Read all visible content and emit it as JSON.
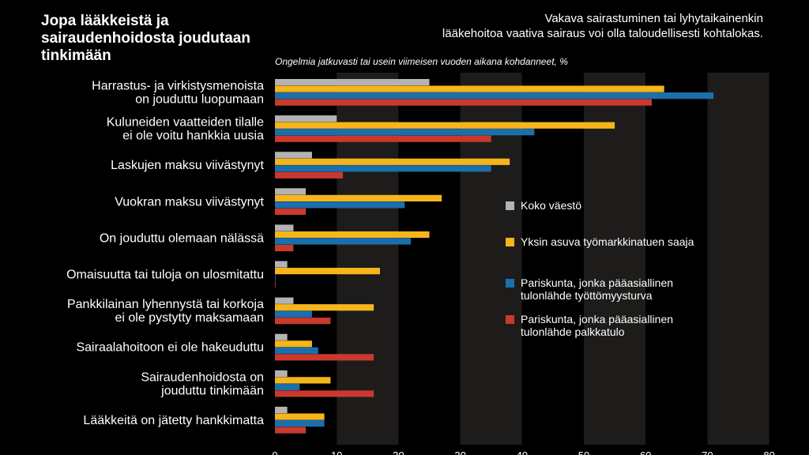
{
  "header": {
    "title": "Jopa lääkkeistä ja\nsairaudenhoidosta joudutaan\ntinkimään",
    "lead": "Vakava sairastuminen tai lyhytaikainenkin\nlääkehoitoa vaativa sairaus voi olla taloudellisesti kohtalokas.",
    "subtitle": "Ongelmia jatkuvasti tai usein viimeisen vuoden aikana kohdanneet, %"
  },
  "chart_data": {
    "type": "bar",
    "orientation": "horizontal",
    "categories": [
      "Harrastus- ja virkistysmenoista\non jouduttu luopumaan",
      "Kuluneiden vaatteiden tilalle\nei ole voitu hankkia uusia",
      "Laskujen maksu viivästynyt",
      "Vuokran maksu viivästynyt",
      "On jouduttu olemaan nälässä",
      "Omaisuutta tai tuloja on ulosmitattu",
      "Pankkilainan lyhennystä tai korkoja\nei ole pystytty maksamaan",
      "Sairaalahoitoon ei ole hakeuduttu",
      "Sairaudenhoidosta on\njouduttu tinkimään",
      "Lääkkeitä on jätetty hankkimatta"
    ],
    "series": [
      {
        "name": "Koko väestö",
        "color": "#b3b3b3",
        "values": [
          25,
          10,
          6,
          5,
          3,
          2,
          3,
          2,
          2,
          2
        ]
      },
      {
        "name": "Yksin asuva työmarkkinatuen saaja",
        "color": "#f5b51b",
        "values": [
          63,
          55,
          38,
          27,
          25,
          17,
          16,
          6,
          9,
          8
        ]
      },
      {
        "name": "Pariskunta, jonka pääasiallinen\ntulonlähde työttömyysturva",
        "color": "#1a6fad",
        "values": [
          71,
          42,
          35,
          21,
          22,
          0,
          6,
          7,
          4,
          8
        ]
      },
      {
        "name": "Pariskunta, jonka pääasiallinen\ntulonlähde palkkatulo",
        "color": "#c8392e",
        "values": [
          61,
          35,
          11,
          5,
          3,
          0,
          9,
          16,
          16,
          5
        ]
      }
    ],
    "xlim": [
      0,
      80
    ],
    "xticks": [
      0,
      10,
      20,
      30,
      40,
      50,
      60,
      70,
      80
    ],
    "banding": "alternating dark bands every 10 units",
    "legend_position": "right-middle inside plot"
  }
}
